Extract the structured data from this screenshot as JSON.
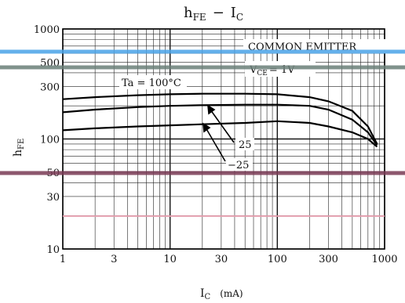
{
  "chart_data": {
    "type": "line",
    "title": "hFE − IC",
    "xlabel": "IC (mA)",
    "ylabel": "hFE",
    "xscale": "log",
    "yscale": "log",
    "xlim": [
      1,
      1000
    ],
    "ylim": [
      10,
      1000
    ],
    "x_ticks": [
      "1",
      "3",
      "10",
      "30",
      "100",
      "300",
      "1000"
    ],
    "y_ticks": [
      "10",
      "30",
      "50",
      "100",
      "300",
      "500",
      "1000"
    ],
    "annotations": [
      "COMMON EMITTER",
      "VCE = 1V"
    ],
    "grid": true,
    "series": [
      {
        "name": "Ta = 100°C",
        "x": [
          1,
          2,
          5,
          10,
          20,
          50,
          100,
          200,
          300,
          500,
          700,
          850
        ],
        "y": [
          230,
          240,
          250,
          255,
          258,
          258,
          255,
          240,
          220,
          180,
          130,
          90
        ]
      },
      {
        "name": "25",
        "x": [
          1,
          2,
          5,
          10,
          20,
          50,
          100,
          200,
          300,
          500,
          700,
          850
        ],
        "y": [
          175,
          185,
          195,
          200,
          203,
          205,
          205,
          200,
          185,
          150,
          115,
          88
        ]
      },
      {
        "name": "−25",
        "x": [
          1,
          2,
          5,
          10,
          20,
          50,
          100,
          200,
          300,
          500,
          700,
          850
        ],
        "y": [
          120,
          125,
          130,
          133,
          136,
          140,
          145,
          140,
          130,
          115,
          100,
          85
        ]
      }
    ]
  },
  "labels": {
    "title_main": "h",
    "title_sub": "FE",
    "title_dash": "−",
    "title_i": "I",
    "title_isub": "C",
    "ylabel_main": "h",
    "ylabel_sub": "FE",
    "xlabel_main": "I",
    "xlabel_sub": "C",
    "xlabel_unit": "(mA)",
    "common_emitter": "COMMON EMITTER",
    "vce_main": "V",
    "vce_sub": "CE",
    "vce_val": "= 1V",
    "ta_label": "Ta = 100°C",
    "t25": "25",
    "tm25": "−25"
  },
  "colors": {
    "overlay_blue": "#4aa3e8",
    "overlay_gray": "#6b7f79",
    "overlay_maroon": "#7a3a55",
    "overlay_pink": "#e8a0b0"
  }
}
